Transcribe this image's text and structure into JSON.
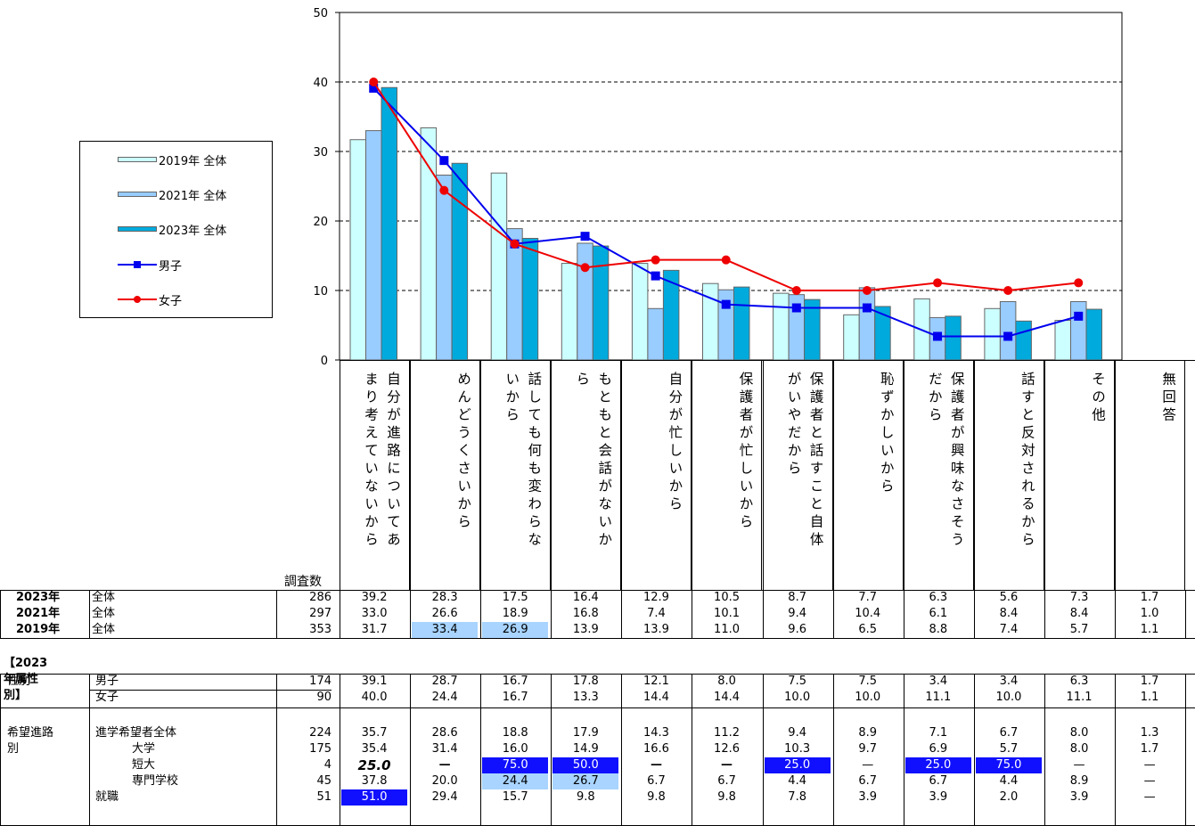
{
  "chart_data": {
    "type": "bar",
    "ylim": [
      0,
      50
    ],
    "yticks": [
      0,
      10,
      20,
      30,
      40,
      50
    ],
    "grid": "dashed horizontal",
    "legend_position": "left",
    "categories": [
      "自分が進路についてあまり考えていないから",
      "めんどうくさいから",
      "話しても何も変わらないから",
      "もともと会話がないから",
      "自分が忙しいから",
      "保護者が忙しいから",
      "保護者と話すこと自体がいやだから",
      "恥ずかしいから",
      "保護者が興味なさそうだから",
      "話すと反対されるから",
      "その他",
      "無回答"
    ],
    "category_lines": [
      [
        "自分が進路についてあ",
        "まり考えていないから"
      ],
      [
        "めんどうくさいから"
      ],
      [
        "話しても何も変わらな",
        "いから"
      ],
      [
        "もともと会話がないか",
        "ら"
      ],
      [
        "自分が忙しいから"
      ],
      [
        "保護者が忙しいから"
      ],
      [
        "保護者と話すこと自体",
        "がいやだから"
      ],
      [
        "恥ずかしいから"
      ],
      [
        "保護者が興味なさそう",
        "だから"
      ],
      [
        "話すと反対されるから"
      ],
      [
        "その他"
      ],
      [
        "無回答"
      ]
    ],
    "bar_series": [
      {
        "name": "2019年 全体",
        "color": "#ccffff",
        "values": [
          31.7,
          33.4,
          26.9,
          13.9,
          13.9,
          11.0,
          9.6,
          6.5,
          8.8,
          7.4,
          5.7,
          1.1
        ]
      },
      {
        "name": "2021年 全体",
        "color": "#99ccff",
        "values": [
          33.0,
          26.6,
          18.9,
          16.8,
          7.4,
          10.1,
          9.4,
          10.4,
          6.1,
          8.4,
          8.4,
          1.0
        ]
      },
      {
        "name": "2023年 全体",
        "color": "#00aadd",
        "values": [
          39.2,
          28.3,
          17.5,
          16.4,
          12.9,
          10.5,
          8.7,
          7.7,
          6.3,
          5.6,
          7.3,
          1.7
        ]
      }
    ],
    "line_series": [
      {
        "name": "男子",
        "color": "#0000ee",
        "marker": "square",
        "values": [
          39.1,
          28.7,
          16.7,
          17.8,
          12.1,
          8.0,
          7.5,
          7.5,
          3.4,
          3.4,
          6.3
        ]
      },
      {
        "name": "女子",
        "color": "#ee0000",
        "marker": "circle",
        "values": [
          40.0,
          24.4,
          16.7,
          13.3,
          14.4,
          14.4,
          10.0,
          10.0,
          11.1,
          10.0,
          11.1
        ]
      }
    ]
  },
  "table": {
    "n_label": "調査数",
    "section_label": "【2023年属性別】",
    "rows": [
      {
        "g1": "2023年",
        "g2": "全体",
        "bold1": true,
        "n": "286",
        "v": [
          "39.2",
          "28.3",
          "17.5",
          "16.4",
          "12.9",
          "10.5",
          "8.7",
          "7.7",
          "6.3",
          "5.6",
          "7.3",
          "1.7"
        ],
        "hl": [
          "",
          "",
          "",
          "",
          "",
          "",
          "",
          "",
          "",
          "",
          "",
          ""
        ]
      },
      {
        "g1": "2021年",
        "g2": "全体",
        "bold1": true,
        "n": "297",
        "v": [
          "33.0",
          "26.6",
          "18.9",
          "16.8",
          "7.4",
          "10.1",
          "9.4",
          "10.4",
          "6.1",
          "8.4",
          "8.4",
          "1.0"
        ],
        "hl": [
          "",
          "",
          "",
          "",
          "",
          "",
          "",
          "",
          "",
          "",
          "",
          ""
        ]
      },
      {
        "g1": "2019年",
        "g2": "全体",
        "bold1": true,
        "n": "353",
        "v": [
          "31.7",
          "33.4",
          "26.9",
          "13.9",
          "13.9",
          "11.0",
          "9.6",
          "6.5",
          "8.8",
          "7.4",
          "5.7",
          "1.1"
        ],
        "hl": [
          "",
          "light",
          "light",
          "",
          "",
          "",
          "",
          "",
          "",
          "",
          "",
          ""
        ]
      },
      {
        "g1": "性別",
        "g2": "男子",
        "n": "174",
        "v": [
          "39.1",
          "28.7",
          "16.7",
          "17.8",
          "12.1",
          "8.0",
          "7.5",
          "7.5",
          "3.4",
          "3.4",
          "6.3",
          "1.7"
        ],
        "hl": [
          "",
          "",
          "",
          "",
          "",
          "",
          "",
          "",
          "",
          "",
          "",
          ""
        ]
      },
      {
        "g1": "",
        "g2": "女子",
        "n": "90",
        "v": [
          "40.0",
          "24.4",
          "16.7",
          "13.3",
          "14.4",
          "14.4",
          "10.0",
          "10.0",
          "11.1",
          "10.0",
          "11.1",
          "1.1"
        ],
        "hl": [
          "",
          "",
          "",
          "",
          "",
          "",
          "",
          "",
          "",
          "",
          "",
          ""
        ]
      },
      {
        "g1": "希望進路",
        "g2": "進学希望者全体",
        "n": "224",
        "v": [
          "35.7",
          "28.6",
          "18.8",
          "17.9",
          "14.3",
          "11.2",
          "9.4",
          "8.9",
          "7.1",
          "6.7",
          "8.0",
          "1.3"
        ],
        "hl": [
          "",
          "",
          "",
          "",
          "",
          "",
          "",
          "",
          "",
          "",
          "",
          ""
        ]
      },
      {
        "g1": "別",
        "g2": "大学",
        "indent": true,
        "n": "175",
        "v": [
          "35.4",
          "31.4",
          "16.0",
          "14.9",
          "16.6",
          "12.6",
          "10.3",
          "9.7",
          "6.9",
          "5.7",
          "8.0",
          "1.7"
        ],
        "hl": [
          "",
          "",
          "",
          "",
          "",
          "",
          "",
          "",
          "",
          "",
          "",
          ""
        ]
      },
      {
        "g1": "",
        "g2": "短大",
        "indent": true,
        "n": "4",
        "v": [
          "25.0",
          "—",
          "75.0",
          "50.0",
          "—",
          "—",
          "25.0",
          "—",
          "25.0",
          "75.0",
          "—",
          "—"
        ],
        "hl": [
          "italic",
          "",
          "blue",
          "blue",
          "",
          "",
          "blue",
          "",
          "blue",
          "blue",
          "",
          ""
        ]
      },
      {
        "g1": "",
        "g2": "専門学校",
        "indent": true,
        "n": "45",
        "v": [
          "37.8",
          "20.0",
          "24.4",
          "26.7",
          "6.7",
          "6.7",
          "4.4",
          "6.7",
          "6.7",
          "4.4",
          "8.9",
          "—"
        ],
        "hl": [
          "",
          "",
          "light",
          "light",
          "",
          "",
          "",
          "",
          "",
          "",
          "",
          ""
        ]
      },
      {
        "g1": "",
        "g2": "就職",
        "n": "51",
        "v": [
          "51.0",
          "29.4",
          "15.7",
          "9.8",
          "9.8",
          "9.8",
          "7.8",
          "3.9",
          "3.9",
          "2.0",
          "3.9",
          "—"
        ],
        "hl": [
          "blue",
          "",
          "",
          "",
          "",
          "",
          "",
          "",
          "",
          "",
          "",
          ""
        ]
      }
    ]
  }
}
